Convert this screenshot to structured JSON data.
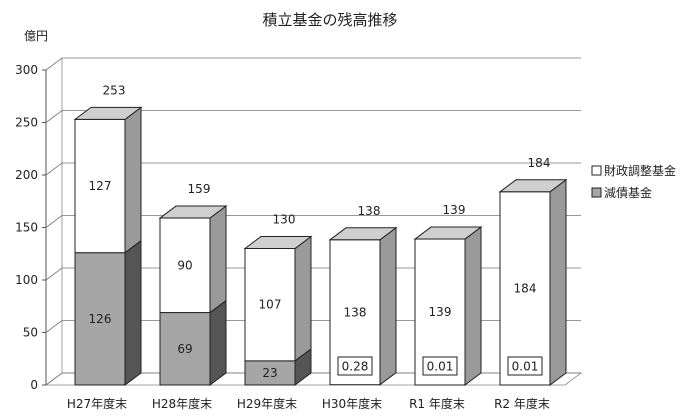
{
  "chart_data": {
    "type": "bar",
    "stacked": true,
    "style": "3d",
    "title": "積立基金の残高推移",
    "ylabel": "億円",
    "ylim": [
      0,
      300
    ],
    "yticks": [
      0,
      50,
      100,
      150,
      200,
      250,
      300
    ],
    "grid": true,
    "legend": "right",
    "categories": [
      "H27年度末",
      "H28年度末",
      "H29年度末",
      "H30年度末",
      "R1 年度末",
      "R2 年度末"
    ],
    "series": [
      {
        "name": "減債基金",
        "values": [
          126,
          69,
          23,
          0.28,
          0.01,
          0.01
        ],
        "labels": [
          "126",
          "69",
          "23",
          "0.28",
          "0.01",
          "0.01"
        ],
        "color": "#a6a6a6"
      },
      {
        "name": "財政調整基金",
        "values": [
          127,
          90,
          107,
          138,
          139,
          184
        ],
        "labels": [
          "127",
          "90",
          "107",
          "138",
          "139",
          "184"
        ],
        "color": "#ffffff"
      }
    ],
    "totals": [
      "253",
      "159",
      "130",
      "138",
      "139",
      "184"
    ]
  }
}
